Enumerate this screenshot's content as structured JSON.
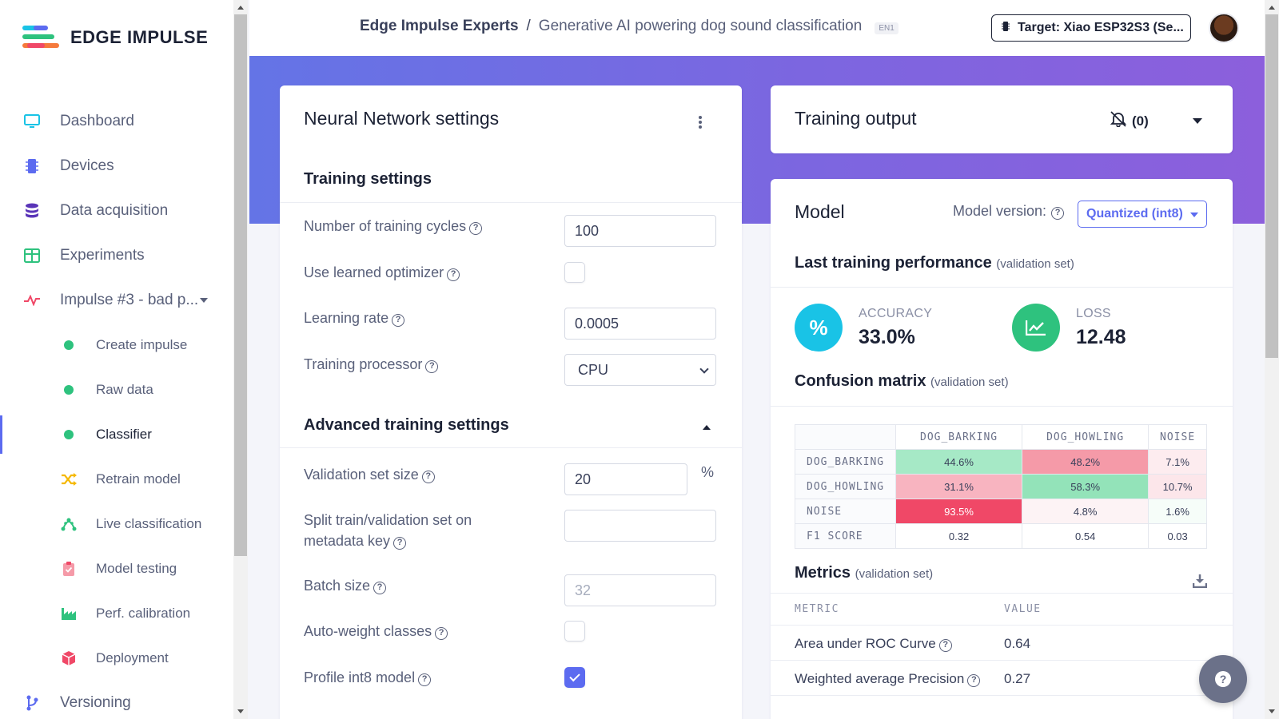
{
  "brand": {
    "name": "EDGE IMPULSE"
  },
  "sidebar": {
    "items": [
      {
        "label": "Dashboard",
        "icon": "monitor-icon"
      },
      {
        "label": "Devices",
        "icon": "chip-icon"
      },
      {
        "label": "Data acquisition",
        "icon": "database-icon"
      },
      {
        "label": "Experiments",
        "icon": "table-icon"
      },
      {
        "label": "Impulse #3 - bad p...",
        "icon": "pulse-icon"
      },
      {
        "label": "Create impulse",
        "icon": "status-dot-icon"
      },
      {
        "label": "Raw data",
        "icon": "status-dot-icon"
      },
      {
        "label": "Classifier",
        "icon": "status-dot-icon"
      },
      {
        "label": "Retrain model",
        "icon": "shuffle-icon"
      },
      {
        "label": "Live classification",
        "icon": "network-icon"
      },
      {
        "label": "Model testing",
        "icon": "clipboard-icon"
      },
      {
        "label": "Perf. calibration",
        "icon": "factory-icon"
      },
      {
        "label": "Deployment",
        "icon": "package-icon"
      },
      {
        "label": "Versioning",
        "icon": "branch-icon"
      }
    ]
  },
  "header": {
    "project_owner": "Edge Impulse Experts",
    "separator": "/",
    "project_name": "Generative AI powering dog sound classification",
    "tag": "EN1",
    "target_label": "Target: Xiao ESP32S3 (Se..."
  },
  "nn_settings": {
    "title": "Neural Network settings",
    "training_settings_title": "Training settings",
    "training_cycles_label": "Number of training cycles",
    "training_cycles_value": "100",
    "learned_optimizer_label": "Use learned optimizer",
    "learned_optimizer_checked": false,
    "learning_rate_label": "Learning rate",
    "learning_rate_value": "0.0005",
    "training_processor_label": "Training processor",
    "training_processor_value": "CPU",
    "advanced_title": "Advanced training settings",
    "validation_size_label": "Validation set size",
    "validation_size_value": "20",
    "validation_size_unit": "%",
    "split_label_line1": "Split train/validation set on",
    "split_label_line2": "metadata key",
    "split_value": "",
    "batch_size_label": "Batch size",
    "batch_size_placeholder": "32",
    "auto_weight_label": "Auto-weight classes",
    "auto_weight_checked": false,
    "profile_int8_label": "Profile int8 model",
    "profile_int8_checked": true
  },
  "training_output": {
    "title": "Training output",
    "notifications": "(0)"
  },
  "model": {
    "title": "Model",
    "version_label": "Model version:",
    "version_value": "Quantized (int8)",
    "last_perf_title": "Last training performance",
    "last_perf_note": "(validation set)",
    "accuracy_label": "ACCURACY",
    "accuracy_value": "33.0%",
    "loss_label": "LOSS",
    "loss_value": "12.48",
    "cm_title": "Confusion matrix",
    "cm_note": "(validation set)",
    "cm_columns": [
      "DOG_BARKING",
      "DOG_HOWLING",
      "NOISE"
    ],
    "cm_rows": [
      {
        "label": "DOG_BARKING",
        "cells": [
          "44.6%",
          "48.2%",
          "7.1%"
        ],
        "colors": [
          "#a6e9c6",
          "#f59aa8",
          "#fdecef"
        ]
      },
      {
        "label": "DOG_HOWLING",
        "cells": [
          "31.1%",
          "58.3%",
          "10.7%"
        ],
        "colors": [
          "#f8b4c0",
          "#93e3b9",
          "#fce6ea"
        ]
      },
      {
        "label": "NOISE",
        "cells": [
          "93.5%",
          "4.8%",
          "1.6%"
        ],
        "colors": [
          "#f04867",
          "#fdf3f5",
          "#f6fdf9"
        ]
      },
      {
        "label": "F1 SCORE",
        "cells": [
          "0.32",
          "0.54",
          "0.03"
        ],
        "colors": [
          "#ffffff",
          "#ffffff",
          "#ffffff"
        ]
      }
    ],
    "metrics_title": "Metrics",
    "metrics_note": "(validation set)",
    "metrics_col_metric": "METRIC",
    "metrics_col_value": "VALUE",
    "metrics": [
      {
        "label": "Area under ROC Curve",
        "value": "0.64"
      },
      {
        "label": "Weighted average Precision",
        "value": "0.27"
      }
    ]
  },
  "colors": {
    "accent": "#5c6bf0",
    "accuracy_circle": "#19c3e6",
    "loss_circle": "#2ec27e"
  }
}
